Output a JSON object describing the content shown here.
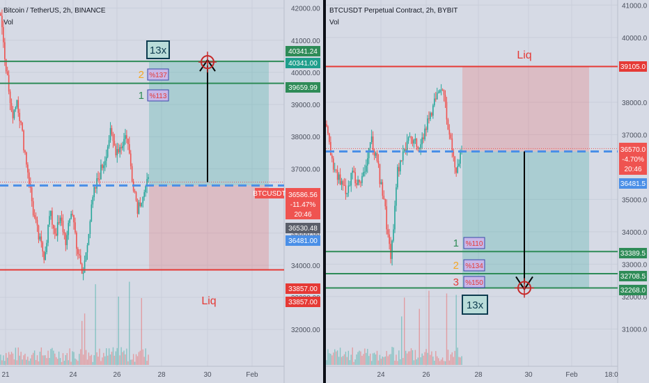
{
  "left": {
    "title": "Bitcoin / TetherUS, 2h, BINANCE",
    "vol_label": "Vol",
    "symbol_tag": "BTCUSDT",
    "price_ticks": [
      "42000.00",
      "41000.00",
      "40000.00",
      "39000.00",
      "38000.00",
      "37000.00",
      "35000.00",
      "34000.00",
      "33000.00",
      "32000.00"
    ],
    "x_ticks": [
      "21",
      "24",
      "26",
      "28",
      "30",
      "Feb"
    ],
    "price_tags": {
      "tp1": "40341.24",
      "tp2": "40341.00",
      "tp3": "39659.99",
      "last": "36586.56",
      "change": "-11.47%",
      "countdown": "20:46",
      "grey": "36530.48",
      "blue": "36481.00",
      "liq_a": "33857.00",
      "liq_b": "33857.00"
    },
    "leverage": "13x",
    "targets": [
      {
        "num": "2",
        "pct": "%137",
        "color": "#f5a623"
      },
      {
        "num": "1",
        "pct": "%113",
        "color": "#2e8b57"
      }
    ],
    "liq_label": "Liq"
  },
  "right": {
    "title": "BTCUSDT Perpetual Contract, 2h, BYBIT",
    "vol_label": "Vol",
    "price_ticks": [
      "41000.0",
      "40000.0",
      "38000.0",
      "37000.0",
      "35000.0",
      "34000.0",
      "33000.0",
      "32000.0",
      "31000.0"
    ],
    "x_ticks": [
      "24",
      "26",
      "28",
      "30",
      "Feb",
      "18:0"
    ],
    "price_tags": {
      "liq": "39105.0",
      "last": "36570.0",
      "change": "-4.70%",
      "countdown": "20:46",
      "blue": "36481.5",
      "t1": "33389.5",
      "t2": "32708.5",
      "t3": "32268.0"
    },
    "leverage": "13x",
    "targets": [
      {
        "num": "1",
        "pct": "%110",
        "color": "#2e8b57"
      },
      {
        "num": "2",
        "pct": "%134",
        "color": "#f5a623"
      },
      {
        "num": "3",
        "pct": "%150",
        "color": "#e53935"
      }
    ],
    "liq_label": "Liq"
  },
  "colors": {
    "up": "#26a69a",
    "down": "#ef5350",
    "liq": "#e53935",
    "target": "#2e8b57",
    "entry": "#4a8fe7"
  },
  "chart_data": [
    {
      "type": "candlestick",
      "title": "Bitcoin / TetherUS, 2h, BINANCE",
      "ylim": [
        31700,
        42100
      ],
      "levels": {
        "take_profit_2": 40341,
        "take_profit_1": 39660,
        "entry": 36481,
        "liquidation": 33857
      },
      "x_ticks": [
        "21",
        "24",
        "26",
        "28",
        "30",
        "Feb"
      ],
      "close_path": [
        41800,
        40200,
        38600,
        39200,
        38000,
        36900,
        35600,
        34800,
        34300,
        35600,
        35000,
        35400,
        34700,
        35800,
        34500,
        33600,
        35000,
        36200,
        36800,
        37300,
        38100,
        37600,
        37700,
        38100,
        36800,
        35800,
        36200,
        36586
      ]
    },
    {
      "type": "candlestick",
      "title": "BTCUSDT Perpetual Contract, 2h, BYBIT",
      "ylim": [
        30300,
        41200
      ],
      "levels": {
        "liquidation": 39105,
        "entry": 36481.5,
        "target_1": 33389.5,
        "target_2": 32708.5,
        "target_3": 32268
      },
      "x_ticks": [
        "24",
        "26",
        "28",
        "30",
        "Feb",
        "18:0"
      ],
      "close_path": [
        37200,
        36000,
        35600,
        35300,
        35800,
        35400,
        35900,
        36800,
        36000,
        34800,
        33200,
        35800,
        36400,
        37000,
        36600,
        36900,
        37600,
        38100,
        38500,
        37100,
        35800,
        36570
      ]
    }
  ]
}
